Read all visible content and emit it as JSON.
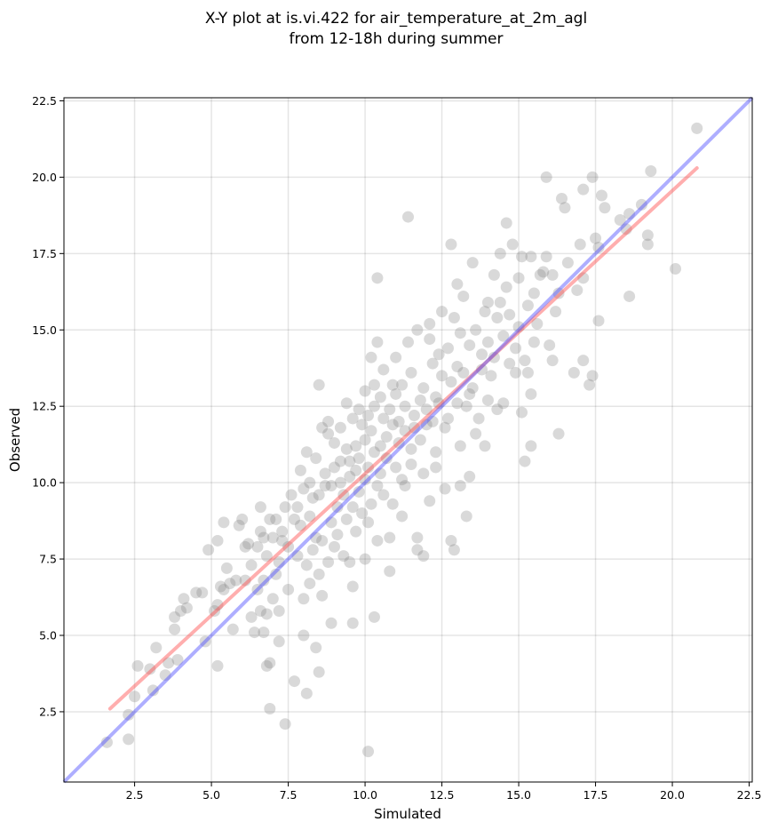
{
  "chart_data": {
    "type": "scatter",
    "title": "X-Y plot at is.vi.422 for air_temperature_at_2m_agl",
    "subtitle": "from 12-18h during summer",
    "xlabel": "Simulated",
    "ylabel": "Observed",
    "xlim": [
      0.2,
      22.6
    ],
    "ylim": [
      0.2,
      22.6
    ],
    "xticks": [
      "2.5",
      "5.0",
      "7.5",
      "10.0",
      "12.5",
      "15.0",
      "17.5",
      "20.0",
      "22.5"
    ],
    "yticks": [
      "2.5",
      "5.0",
      "7.5",
      "10.0",
      "12.5",
      "15.0",
      "17.5",
      "20.0",
      "22.5"
    ],
    "grid": true,
    "colors": {
      "points": "#808080",
      "regression_line": "#ff4d4d",
      "identity_line": "#4d4dff"
    },
    "regression_line": {
      "x": [
        1.7,
        20.8
      ],
      "y": [
        2.6,
        20.3
      ]
    },
    "identity_line": {
      "x": [
        0.2,
        22.6
      ],
      "y": [
        0.2,
        22.6
      ]
    },
    "points": [
      [
        1.6,
        1.5
      ],
      [
        2.3,
        2.4
      ],
      [
        2.3,
        1.6
      ],
      [
        2.5,
        3.0
      ],
      [
        2.6,
        4.0
      ],
      [
        3.0,
        3.9
      ],
      [
        3.1,
        3.2
      ],
      [
        3.2,
        4.6
      ],
      [
        3.5,
        3.7
      ],
      [
        3.6,
        4.1
      ],
      [
        3.8,
        5.6
      ],
      [
        3.8,
        5.2
      ],
      [
        3.9,
        4.2
      ],
      [
        4.0,
        5.8
      ],
      [
        4.1,
        6.2
      ],
      [
        4.2,
        5.9
      ],
      [
        4.5,
        6.4
      ],
      [
        4.7,
        6.4
      ],
      [
        4.8,
        4.8
      ],
      [
        4.9,
        7.8
      ],
      [
        5.1,
        5.8
      ],
      [
        5.2,
        4.0
      ],
      [
        5.2,
        6.0
      ],
      [
        5.2,
        8.1
      ],
      [
        5.3,
        6.6
      ],
      [
        5.4,
        8.7
      ],
      [
        5.4,
        6.5
      ],
      [
        5.5,
        7.2
      ],
      [
        5.6,
        6.7
      ],
      [
        5.7,
        5.2
      ],
      [
        5.8,
        6.8
      ],
      [
        5.9,
        8.6
      ],
      [
        6.0,
        8.8
      ],
      [
        6.1,
        6.8
      ],
      [
        6.1,
        7.9
      ],
      [
        6.2,
        8.0
      ],
      [
        6.3,
        5.6
      ],
      [
        6.3,
        7.3
      ],
      [
        6.4,
        5.1
      ],
      [
        6.5,
        6.5
      ],
      [
        6.5,
        7.9
      ],
      [
        6.6,
        5.8
      ],
      [
        6.6,
        8.4
      ],
      [
        6.6,
        9.2
      ],
      [
        6.7,
        5.1
      ],
      [
        6.7,
        6.8
      ],
      [
        6.7,
        8.2
      ],
      [
        6.8,
        5.7
      ],
      [
        6.8,
        4.0
      ],
      [
        6.8,
        7.6
      ],
      [
        6.9,
        2.6
      ],
      [
        6.9,
        4.1
      ],
      [
        6.9,
        8.8
      ],
      [
        7.0,
        6.2
      ],
      [
        7.0,
        8.2
      ],
      [
        7.1,
        7.0
      ],
      [
        7.1,
        8.8
      ],
      [
        7.2,
        4.8
      ],
      [
        7.2,
        5.8
      ],
      [
        7.2,
        7.4
      ],
      [
        7.3,
        8.1
      ],
      [
        7.3,
        8.4
      ],
      [
        7.4,
        2.1
      ],
      [
        7.4,
        9.2
      ],
      [
        7.5,
        7.9
      ],
      [
        7.5,
        6.5
      ],
      [
        7.6,
        9.6
      ],
      [
        7.7,
        3.5
      ],
      [
        7.7,
        8.8
      ],
      [
        7.8,
        7.6
      ],
      [
        7.8,
        9.2
      ],
      [
        7.9,
        8.6
      ],
      [
        7.9,
        10.4
      ],
      [
        8.0,
        6.2
      ],
      [
        8.0,
        9.8
      ],
      [
        8.0,
        5.0
      ],
      [
        8.1,
        7.3
      ],
      [
        8.1,
        11.0
      ],
      [
        8.1,
        3.1
      ],
      [
        8.2,
        8.9
      ],
      [
        8.2,
        10.0
      ],
      [
        8.2,
        6.7
      ],
      [
        8.3,
        7.8
      ],
      [
        8.3,
        9.5
      ],
      [
        8.4,
        4.6
      ],
      [
        8.4,
        8.2
      ],
      [
        8.4,
        10.8
      ],
      [
        8.5,
        3.8
      ],
      [
        8.5,
        7.0
      ],
      [
        8.5,
        9.6
      ],
      [
        8.5,
        13.2
      ],
      [
        8.6,
        11.8
      ],
      [
        8.6,
        8.1
      ],
      [
        8.6,
        6.3
      ],
      [
        8.7,
        9.9
      ],
      [
        8.7,
        10.3
      ],
      [
        8.8,
        7.4
      ],
      [
        8.8,
        11.6
      ],
      [
        8.8,
        12.0
      ],
      [
        8.9,
        8.7
      ],
      [
        8.9,
        9.9
      ],
      [
        8.9,
        5.4
      ],
      [
        9.0,
        10.5
      ],
      [
        9.0,
        7.9
      ],
      [
        9.0,
        11.3
      ],
      [
        9.1,
        9.2
      ],
      [
        9.1,
        8.3
      ],
      [
        9.2,
        10.0
      ],
      [
        9.2,
        10.7
      ],
      [
        9.2,
        11.8
      ],
      [
        9.3,
        9.6
      ],
      [
        9.3,
        7.6
      ],
      [
        9.4,
        11.1
      ],
      [
        9.4,
        12.6
      ],
      [
        9.4,
        8.8
      ],
      [
        9.5,
        10.2
      ],
      [
        9.5,
        10.7
      ],
      [
        9.5,
        7.4
      ],
      [
        9.6,
        9.2
      ],
      [
        9.6,
        12.1
      ],
      [
        9.6,
        6.6
      ],
      [
        9.6,
        5.4
      ],
      [
        9.7,
        11.2
      ],
      [
        9.7,
        10.4
      ],
      [
        9.7,
        8.4
      ],
      [
        9.8,
        12.4
      ],
      [
        9.8,
        9.7
      ],
      [
        9.8,
        10.8
      ],
      [
        9.9,
        11.9
      ],
      [
        9.9,
        9.0
      ],
      [
        10.0,
        10.1
      ],
      [
        10.0,
        7.5
      ],
      [
        10.0,
        13.0
      ],
      [
        10.0,
        11.4
      ],
      [
        10.1,
        8.7
      ],
      [
        10.1,
        12.2
      ],
      [
        10.1,
        10.5
      ],
      [
        10.1,
        1.2
      ],
      [
        10.2,
        11.7
      ],
      [
        10.2,
        9.3
      ],
      [
        10.2,
        14.1
      ],
      [
        10.3,
        13.2
      ],
      [
        10.3,
        5.6
      ],
      [
        10.3,
        12.5
      ],
      [
        10.3,
        11.0
      ],
      [
        10.4,
        9.9
      ],
      [
        10.4,
        14.6
      ],
      [
        10.4,
        16.7
      ],
      [
        10.4,
        8.1
      ],
      [
        10.5,
        12.8
      ],
      [
        10.5,
        11.2
      ],
      [
        10.5,
        10.3
      ],
      [
        10.6,
        12.1
      ],
      [
        10.6,
        9.6
      ],
      [
        10.6,
        13.7
      ],
      [
        10.7,
        11.5
      ],
      [
        10.7,
        10.8
      ],
      [
        10.8,
        12.4
      ],
      [
        10.8,
        7.1
      ],
      [
        10.8,
        8.2
      ],
      [
        10.9,
        13.2
      ],
      [
        10.9,
        11.9
      ],
      [
        10.9,
        9.3
      ],
      [
        11.0,
        12.9
      ],
      [
        11.0,
        10.5
      ],
      [
        11.0,
        14.1
      ],
      [
        11.1,
        11.3
      ],
      [
        11.1,
        12.0
      ],
      [
        11.2,
        10.1
      ],
      [
        11.2,
        13.2
      ],
      [
        11.2,
        8.9
      ],
      [
        11.3,
        11.7
      ],
      [
        11.3,
        9.9
      ],
      [
        11.3,
        12.5
      ],
      [
        11.4,
        14.6
      ],
      [
        11.4,
        18.7
      ],
      [
        11.5,
        11.1
      ],
      [
        11.5,
        10.6
      ],
      [
        11.5,
        13.6
      ],
      [
        11.6,
        12.2
      ],
      [
        11.6,
        11.8
      ],
      [
        11.7,
        15.0
      ],
      [
        11.7,
        8.2
      ],
      [
        11.7,
        7.8
      ],
      [
        11.8,
        12.7
      ],
      [
        11.8,
        11.4
      ],
      [
        11.9,
        13.1
      ],
      [
        11.9,
        10.3
      ],
      [
        11.9,
        7.6
      ],
      [
        12.0,
        12.4
      ],
      [
        12.0,
        11.9
      ],
      [
        12.1,
        14.7
      ],
      [
        12.1,
        15.2
      ],
      [
        12.1,
        9.4
      ],
      [
        12.2,
        12.0
      ],
      [
        12.2,
        13.9
      ],
      [
        12.3,
        12.8
      ],
      [
        12.3,
        11.0
      ],
      [
        12.3,
        10.5
      ],
      [
        12.4,
        14.2
      ],
      [
        12.4,
        12.6
      ],
      [
        12.5,
        13.5
      ],
      [
        12.5,
        15.6
      ],
      [
        12.6,
        11.8
      ],
      [
        12.6,
        9.8
      ],
      [
        12.7,
        14.4
      ],
      [
        12.7,
        12.1
      ],
      [
        12.8,
        13.3
      ],
      [
        12.8,
        17.8
      ],
      [
        12.8,
        8.1
      ],
      [
        12.9,
        15.4
      ],
      [
        12.9,
        7.8
      ],
      [
        13.0,
        16.5
      ],
      [
        13.0,
        12.6
      ],
      [
        13.0,
        13.8
      ],
      [
        13.1,
        11.2
      ],
      [
        13.1,
        9.9
      ],
      [
        13.1,
        14.9
      ],
      [
        13.2,
        13.6
      ],
      [
        13.2,
        16.1
      ],
      [
        13.3,
        12.5
      ],
      [
        13.3,
        8.9
      ],
      [
        13.4,
        14.5
      ],
      [
        13.4,
        12.9
      ],
      [
        13.4,
        10.2
      ],
      [
        13.5,
        17.2
      ],
      [
        13.5,
        13.1
      ],
      [
        13.6,
        15.0
      ],
      [
        13.6,
        11.6
      ],
      [
        13.7,
        12.1
      ],
      [
        13.8,
        14.2
      ],
      [
        13.8,
        13.7
      ],
      [
        13.9,
        15.6
      ],
      [
        13.9,
        11.2
      ],
      [
        14.0,
        14.6
      ],
      [
        14.0,
        12.7
      ],
      [
        14.0,
        15.9
      ],
      [
        14.1,
        13.5
      ],
      [
        14.2,
        16.8
      ],
      [
        14.2,
        14.1
      ],
      [
        14.3,
        15.4
      ],
      [
        14.3,
        12.4
      ],
      [
        14.4,
        15.9
      ],
      [
        14.4,
        17.5
      ],
      [
        14.5,
        14.8
      ],
      [
        14.5,
        12.6
      ],
      [
        14.6,
        16.4
      ],
      [
        14.6,
        18.5
      ],
      [
        14.7,
        15.5
      ],
      [
        14.7,
        13.9
      ],
      [
        14.8,
        17.8
      ],
      [
        14.9,
        14.4
      ],
      [
        14.9,
        13.6
      ],
      [
        15.0,
        16.7
      ],
      [
        15.0,
        15.1
      ],
      [
        15.1,
        12.3
      ],
      [
        15.1,
        17.4
      ],
      [
        15.2,
        14.0
      ],
      [
        15.2,
        10.7
      ],
      [
        15.3,
        15.8
      ],
      [
        15.3,
        13.6
      ],
      [
        15.4,
        17.4
      ],
      [
        15.4,
        11.2
      ],
      [
        15.4,
        12.9
      ],
      [
        15.5,
        16.2
      ],
      [
        15.5,
        14.6
      ],
      [
        15.6,
        15.2
      ],
      [
        15.7,
        16.8
      ],
      [
        15.8,
        16.9
      ],
      [
        15.9,
        20.0
      ],
      [
        15.9,
        17.4
      ],
      [
        16.0,
        14.5
      ],
      [
        16.1,
        14.0
      ],
      [
        16.1,
        16.8
      ],
      [
        16.2,
        15.6
      ],
      [
        16.3,
        16.2
      ],
      [
        16.3,
        11.6
      ],
      [
        16.4,
        19.3
      ],
      [
        16.5,
        19.0
      ],
      [
        16.6,
        17.2
      ],
      [
        16.8,
        13.6
      ],
      [
        16.9,
        16.3
      ],
      [
        17.0,
        17.8
      ],
      [
        17.1,
        19.6
      ],
      [
        17.1,
        16.7
      ],
      [
        17.1,
        14.0
      ],
      [
        17.3,
        13.2
      ],
      [
        17.4,
        20.0
      ],
      [
        17.4,
        13.5
      ],
      [
        17.5,
        18.0
      ],
      [
        17.6,
        15.3
      ],
      [
        17.6,
        17.7
      ],
      [
        17.7,
        19.4
      ],
      [
        17.8,
        19.0
      ],
      [
        18.3,
        18.6
      ],
      [
        18.5,
        18.3
      ],
      [
        18.6,
        16.1
      ],
      [
        18.6,
        18.8
      ],
      [
        19.0,
        19.1
      ],
      [
        19.2,
        17.8
      ],
      [
        19.2,
        18.1
      ],
      [
        19.3,
        20.2
      ],
      [
        20.1,
        17.0
      ],
      [
        20.8,
        21.6
      ]
    ]
  }
}
